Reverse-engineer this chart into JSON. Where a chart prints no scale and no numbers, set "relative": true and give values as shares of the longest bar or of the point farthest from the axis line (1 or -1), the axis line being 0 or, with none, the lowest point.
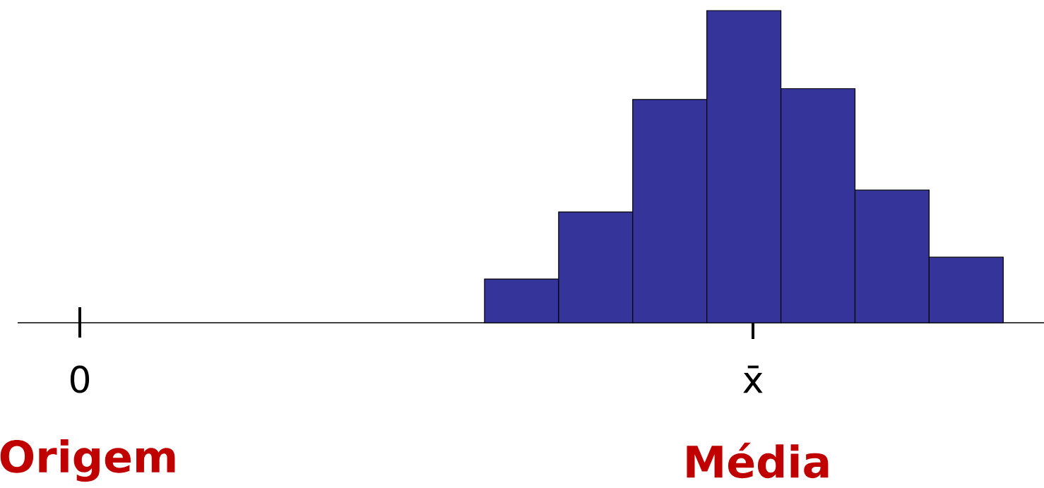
{
  "chart_data": {
    "type": "bar",
    "relative": true,
    "categories": [
      null,
      null,
      null,
      null,
      null,
      null,
      null
    ],
    "values": [
      0.14,
      0.355,
      0.715,
      1,
      0.75,
      0.425,
      0.21
    ],
    "color": "#34349a",
    "annotations": [
      "0",
      "x̄",
      "Origem",
      "Média"
    ]
  }
}
